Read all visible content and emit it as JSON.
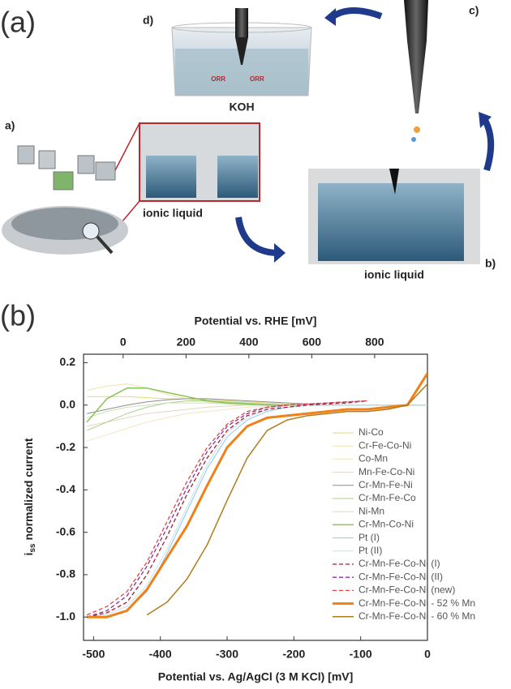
{
  "panel_a": {
    "panel_label": "(a)",
    "step_d": "d)",
    "electrolyte": "KOH",
    "orr_left": "ORR",
    "orr_right": "ORR",
    "step_c": "c)",
    "step_a": "a)",
    "liquid_a": "ionic liquid",
    "liquid_b": "ionic liquid",
    "step_b": "b)"
  },
  "chart_data": {
    "type": "line",
    "panel_label": "(b)",
    "x_label": "Potential vs. Ag/AgCl (3 M KCl) [mV]",
    "x2_label": "Potential vs. RHE [mV]",
    "y_label_symbol": "i",
    "y_label_subscript": "ss",
    "y_label": "normalized current",
    "xlim": [
      -515,
      0
    ],
    "xticks": [
      -500,
      -400,
      -300,
      -200,
      -100,
      0
    ],
    "x2lim": [
      -126,
      968
    ],
    "x2ticks": [
      0,
      200,
      400,
      600,
      800
    ],
    "ylim": [
      -1.11,
      0.24
    ],
    "yticks": [
      0.2,
      {
        "value": 0,
        "label": "0.0"
      },
      -0.2,
      -0.4,
      -0.6,
      -0.8,
      {
        "value": -1,
        "label": "-1.0"
      }
    ],
    "x": [
      -510,
      -480,
      -450,
      -420,
      -390,
      -360,
      -330,
      -300,
      -270,
      -240,
      -210,
      -180,
      -150,
      -120,
      -90,
      -60,
      -30,
      0
    ],
    "series": [
      {
        "name": "Ni-Co",
        "color": "#e6d77a",
        "dashed": false,
        "linewidth": 1,
        "values": [
          0.04,
          0.04,
          0.04,
          0.035,
          0.03,
          0.03,
          0.025,
          0.02,
          0.015,
          0.01,
          0.005,
          0,
          0,
          0,
          0,
          0,
          0,
          0
        ]
      },
      {
        "name": "Cr-Fe-Co-Ni",
        "color": "#f2e4a6",
        "dashed": false,
        "linewidth": 1,
        "values": [
          0.07,
          0.09,
          0.1,
          0.08,
          0.05,
          0.03,
          0.015,
          0.005,
          0,
          0,
          0,
          0,
          0,
          0,
          0,
          0,
          0,
          0
        ]
      },
      {
        "name": "Co-Mn",
        "color": "#f3e6c4",
        "dashed": false,
        "linewidth": 1,
        "values": [
          -0.17,
          -0.14,
          -0.11,
          -0.08,
          -0.06,
          -0.04,
          -0.03,
          -0.02,
          -0.01,
          -0.005,
          0,
          0,
          0,
          0,
          0,
          0,
          0,
          0
        ]
      },
      {
        "name": "Mn-Fe-Co-Ni",
        "color": "#e4d6c4",
        "dashed": false,
        "linewidth": 1,
        "values": [
          -0.1,
          -0.08,
          -0.06,
          -0.04,
          -0.03,
          -0.02,
          -0.01,
          -0.005,
          0,
          0,
          0,
          0,
          0,
          0,
          0,
          0,
          0,
          0
        ]
      },
      {
        "name": "Cr-Mn-Fe-Ni",
        "color": "#8c8c8c",
        "dashed": false,
        "linewidth": 1,
        "values": [
          -0.04,
          -0.02,
          0,
          0.015,
          0.025,
          0.03,
          0.03,
          0.025,
          0.02,
          0.015,
          0.01,
          0.005,
          0,
          0,
          0,
          0,
          0,
          0
        ]
      },
      {
        "name": "Cr-Mn-Fe-Co",
        "color": "#a8d08a",
        "dashed": false,
        "linewidth": 1,
        "values": [
          -0.12,
          -0.08,
          -0.04,
          -0.01,
          0.01,
          0.02,
          0.02,
          0.015,
          0.01,
          0.005,
          0,
          0,
          0,
          0,
          0,
          0,
          0,
          0
        ]
      },
      {
        "name": "Ni-Mn",
        "color": "#cce2b4",
        "dashed": false,
        "linewidth": 1,
        "values": [
          -0.06,
          -0.03,
          -0.01,
          0,
          0.01,
          0.01,
          0.01,
          0.005,
          0,
          0,
          0,
          0,
          0,
          0,
          0,
          0,
          0,
          0
        ]
      },
      {
        "name": "Cr-Mn-Co-Ni",
        "color": "#86c45a",
        "dashed": false,
        "linewidth": 1.5,
        "values": [
          -0.08,
          0.03,
          0.08,
          0.08,
          0.06,
          0.04,
          0.02,
          0.01,
          0.005,
          0,
          0,
          0,
          0,
          0,
          0,
          0,
          0,
          0
        ]
      },
      {
        "name": "Pt (I)",
        "color": "#8ec8ea",
        "dashed": false,
        "linewidth": 1,
        "values": [
          -1,
          -1,
          -0.97,
          -0.88,
          -0.7,
          -0.5,
          -0.3,
          -0.15,
          -0.07,
          -0.03,
          -0.01,
          0,
          0,
          0,
          0,
          0,
          0,
          0
        ]
      },
      {
        "name": "Pt (II)",
        "color": "#c4e2f2",
        "dashed": false,
        "linewidth": 1,
        "values": [
          -1,
          -0.99,
          -0.95,
          -0.85,
          -0.68,
          -0.48,
          -0.28,
          -0.13,
          -0.06,
          -0.02,
          0,
          0,
          0,
          0,
          0,
          0,
          0,
          0
        ]
      },
      {
        "name": "Cr-Mn-Fe-Co-Ni (I)",
        "color": "#a8202e",
        "dashed": true,
        "linewidth": 1.3,
        "values": [
          -1,
          -0.98,
          -0.93,
          -0.8,
          -0.62,
          -0.42,
          -0.25,
          -0.12,
          -0.05,
          -0.02,
          -0.01,
          0,
          0.005,
          0.01,
          0.02,
          null,
          null,
          null
        ]
      },
      {
        "name": "Cr-Mn-Fe-Co-Ni (II)",
        "color": "#8a2ea0",
        "dashed": true,
        "linewidth": 1.3,
        "values": [
          -1,
          -0.97,
          -0.9,
          -0.76,
          -0.58,
          -0.39,
          -0.22,
          -0.1,
          -0.04,
          -0.01,
          0,
          0.005,
          0.01,
          0.015,
          0.02,
          null,
          null,
          null
        ]
      },
      {
        "name": "Cr-Mn-Fe-Co-Ni (new)",
        "color": "#e04848",
        "dashed": true,
        "linewidth": 1.3,
        "values": [
          -0.99,
          -0.95,
          -0.88,
          -0.74,
          -0.55,
          -0.36,
          -0.2,
          -0.09,
          -0.03,
          -0.01,
          0,
          0.005,
          0.01,
          0.015,
          0.02,
          null,
          null,
          null
        ]
      },
      {
        "name": "Cr-Mn-Fe-Co-Ni - 52 % Mn",
        "color": "#f08018",
        "dashed": false,
        "linewidth": 3,
        "values": [
          -1,
          -1,
          -0.97,
          -0.87,
          -0.72,
          -0.57,
          -0.38,
          -0.2,
          -0.1,
          -0.06,
          -0.05,
          -0.04,
          -0.03,
          -0.02,
          -0.02,
          -0.01,
          0,
          0.15
        ]
      },
      {
        "name": "Cr-Mn-Fe-Co-Ni - 60 % Mn",
        "color": "#b07c1c",
        "dashed": false,
        "linewidth": 1.5,
        "values": [
          null,
          null,
          null,
          -0.99,
          -0.93,
          -0.82,
          -0.66,
          -0.45,
          -0.25,
          -0.12,
          -0.07,
          -0.05,
          -0.04,
          -0.03,
          -0.03,
          -0.02,
          0,
          0.1
        ]
      }
    ]
  }
}
